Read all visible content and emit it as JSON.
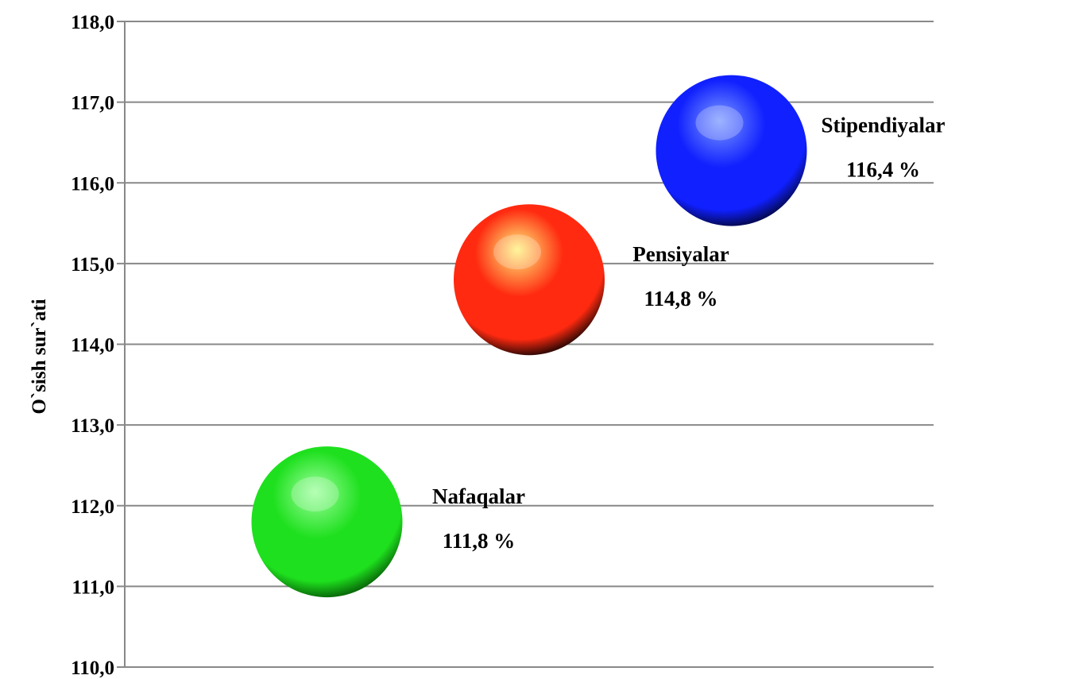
{
  "chart_data": {
    "type": "scatter",
    "title": "",
    "xlabel": "",
    "ylabel": "O`sish sur`ati",
    "ylim": [
      110,
      118
    ],
    "ytick_step": 1,
    "ytick_labels": [
      "110,0",
      "111,0",
      "112,0",
      "113,0",
      "114,0",
      "115,0",
      "116,0",
      "117,0",
      "118,0"
    ],
    "xlim": [
      0,
      4
    ],
    "grid": true,
    "legend": "none",
    "points": [
      {
        "x": 1,
        "y": 111.8,
        "name": "Nafaqalar",
        "value_label": "111,8 %",
        "color_light": "#9dff9d",
        "color_mid": "#1ee01e",
        "color_dark": "#0a6e0a"
      },
      {
        "x": 2,
        "y": 114.8,
        "name": "Pensiyalar",
        "value_label": "114,8 %",
        "color_light": "#fff27a",
        "color_mid": "#ff2a10",
        "color_dark": "#3a0a05"
      },
      {
        "x": 3,
        "y": 116.4,
        "name": "Stipendiyalar",
        "value_label": "116,4 %",
        "color_light": "#7c9bff",
        "color_mid": "#1020ff",
        "color_dark": "#050a5a"
      }
    ],
    "gridline_color": "#888888"
  }
}
